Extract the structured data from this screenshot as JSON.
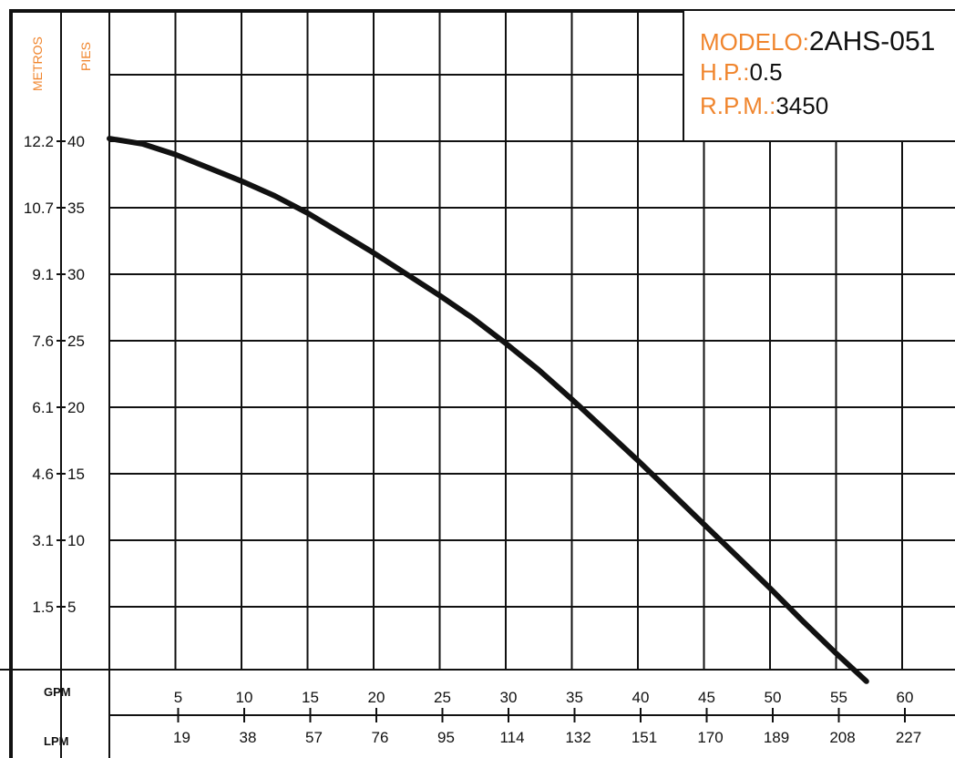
{
  "chart_data": {
    "type": "line",
    "title": "",
    "y_axis_left_title": "METROS",
    "y_axis_right_title": "PIES",
    "x_axis_top_title": "GPM",
    "x_axis_bottom_title": "LPM",
    "y_ticks_pies": [
      "40",
      "35",
      "30",
      "25",
      "20",
      "15",
      "10",
      "5"
    ],
    "y_ticks_metros": [
      "12.2",
      "10.7",
      "9.1",
      "7.6",
      "6.1",
      "4.6",
      "3.1",
      "1.5"
    ],
    "x_ticks_gpm": [
      "5",
      "10",
      "15",
      "20",
      "25",
      "30",
      "35",
      "40",
      "45",
      "50",
      "55",
      "60"
    ],
    "x_ticks_lpm": [
      "19",
      "38",
      "57",
      "76",
      "95",
      "114",
      "132",
      "151",
      "170",
      "189",
      "208",
      "227"
    ],
    "xlim": [
      0,
      60
    ],
    "ylim": [
      0,
      45
    ],
    "grid": true,
    "series": [
      {
        "x": [
          0,
          2.5,
          5,
          7.5,
          10,
          12.5,
          15,
          17.5,
          20,
          22.5,
          25,
          27.5,
          30,
          32.5,
          35,
          37.5,
          40,
          42.5,
          45,
          47.5,
          50,
          52.5,
          55,
          57.3
        ],
        "y": [
          40.2,
          39.8,
          39.0,
          38.0,
          37.0,
          35.9,
          34.6,
          33.1,
          31.6,
          30.0,
          28.4,
          26.7,
          24.8,
          22.8,
          20.6,
          18.3,
          16.0,
          13.6,
          11.2,
          8.8,
          6.4,
          3.9,
          1.5,
          -0.6
        ]
      }
    ]
  },
  "info": {
    "modelo_label": "MODELO:",
    "modelo_value": "2AHS-051",
    "hp_label": "H.P.:",
    "hp_value": "0.5",
    "rpm_label": "R.P.M.:",
    "rpm_value": "3450"
  },
  "colors": {
    "accent": "#f0852d",
    "line": "#111111",
    "grid": "#111111"
  }
}
